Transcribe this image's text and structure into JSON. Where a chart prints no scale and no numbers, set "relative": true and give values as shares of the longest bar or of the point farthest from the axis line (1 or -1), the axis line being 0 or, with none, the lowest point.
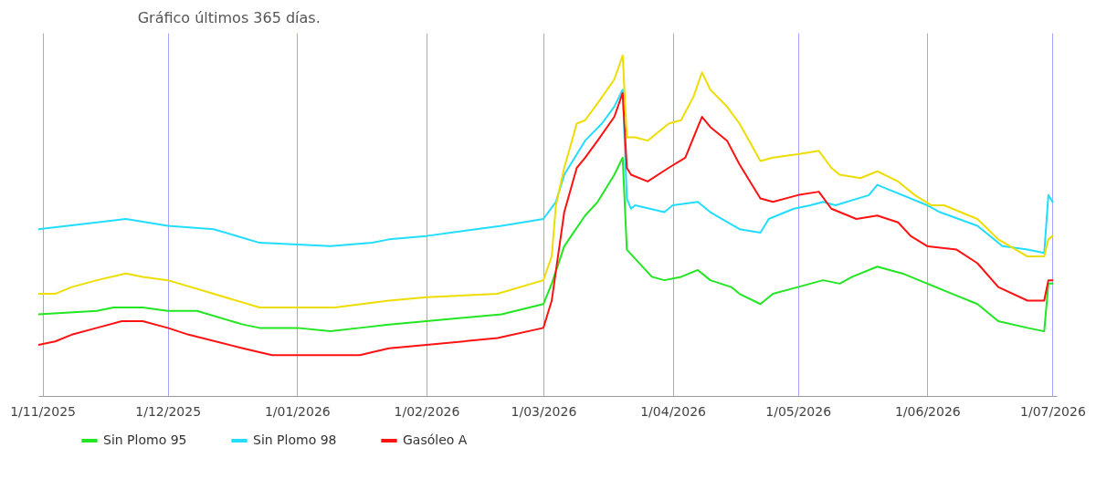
{
  "chart_data": {
    "type": "line",
    "title": "Gráfico últimos 365 días.",
    "relative": true,
    "grid": "x",
    "legend": "bottom",
    "xlim": [
      "2025-10-31",
      "2026-07-02"
    ],
    "xticks": [
      {
        "value": "2025-11-01",
        "label": "1/11/2025"
      },
      {
        "value": "2025-12-01",
        "label": "1/12/2025"
      },
      {
        "value": "2026-01-01",
        "label": "1/01/2026"
      },
      {
        "value": "2026-02-01",
        "label": "1/02/2026"
      },
      {
        "value": "2026-03-01",
        "label": "1/03/2026"
      },
      {
        "value": "2026-04-01",
        "label": "1/04/2026"
      },
      {
        "value": "2026-05-01",
        "label": "1/05/2026"
      },
      {
        "value": "2026-06-01",
        "label": "1/06/2026"
      },
      {
        "value": "2026-07-01",
        "label": "1/07/2026"
      }
    ],
    "series": [
      {
        "name": "Sin Plomo 95",
        "color": "#22e622",
        "x": [
          "2025-10-31",
          "2025-11-14",
          "2025-11-18",
          "2025-11-25",
          "2025-12-01",
          "2025-12-08",
          "2025-12-19",
          "2025-12-23",
          "2026-01-01",
          "2026-01-09",
          "2026-01-16",
          "2026-01-23",
          "2026-02-01",
          "2026-02-19",
          "2026-03-01",
          "2026-03-03",
          "2026-03-06",
          "2026-03-11",
          "2026-03-14",
          "2026-03-18",
          "2026-03-20",
          "2026-03-21",
          "2026-03-27",
          "2026-03-30",
          "2026-04-03",
          "2026-04-07",
          "2026-04-10",
          "2026-04-15",
          "2026-04-17",
          "2026-04-22",
          "2026-04-25",
          "2026-05-01",
          "2026-05-07",
          "2026-05-11",
          "2026-05-14",
          "2026-05-20",
          "2026-05-26",
          "2026-06-01",
          "2026-06-07",
          "2026-06-13",
          "2026-06-18",
          "2026-06-25",
          "2026-06-29",
          "2026-06-30",
          "2026-07-01"
        ],
        "values": [
          0.24,
          0.25,
          0.26,
          0.26,
          0.25,
          0.25,
          0.21,
          0.2,
          0.2,
          0.19,
          0.2,
          0.21,
          0.22,
          0.24,
          0.27,
          0.33,
          0.44,
          0.53,
          0.57,
          0.65,
          0.7,
          0.43,
          0.35,
          0.34,
          0.35,
          0.37,
          0.34,
          0.32,
          0.3,
          0.27,
          0.3,
          0.32,
          0.34,
          0.33,
          0.35,
          0.38,
          0.36,
          0.33,
          0.3,
          0.27,
          0.22,
          0.2,
          0.19,
          0.33,
          0.33
        ]
      },
      {
        "name": "Sin Plomo 98",
        "color": "#22ddff",
        "x": [
          "2025-10-31",
          "2025-11-14",
          "2025-11-21",
          "2025-12-01",
          "2025-12-12",
          "2025-12-23",
          "2026-01-09",
          "2026-01-19",
          "2026-01-23",
          "2026-02-01",
          "2026-02-19",
          "2026-03-01",
          "2026-03-04",
          "2026-03-06",
          "2026-03-11",
          "2026-03-15",
          "2026-03-18",
          "2026-03-20",
          "2026-03-21",
          "2026-03-22",
          "2026-03-23",
          "2026-03-30",
          "2026-04-01",
          "2026-04-07",
          "2026-04-10",
          "2026-04-17",
          "2026-04-22",
          "2026-04-24",
          "2026-04-30",
          "2026-05-04",
          "2026-05-07",
          "2026-05-10",
          "2026-05-18",
          "2026-05-20",
          "2026-06-01",
          "2026-06-04",
          "2026-06-13",
          "2026-06-19",
          "2026-06-25",
          "2026-06-29",
          "2026-06-30",
          "2026-07-01"
        ],
        "values": [
          0.49,
          0.51,
          0.52,
          0.5,
          0.49,
          0.45,
          0.44,
          0.45,
          0.46,
          0.47,
          0.5,
          0.52,
          0.57,
          0.65,
          0.75,
          0.8,
          0.85,
          0.9,
          0.58,
          0.55,
          0.56,
          0.54,
          0.56,
          0.57,
          0.54,
          0.49,
          0.48,
          0.52,
          0.55,
          0.56,
          0.57,
          0.56,
          0.59,
          0.62,
          0.56,
          0.54,
          0.5,
          0.44,
          0.43,
          0.42,
          0.59,
          0.57
        ]
      },
      {
        "name": "Gasóleo A",
        "color": "#ff1111",
        "x": [
          "2025-10-31",
          "2025-11-04",
          "2025-11-08",
          "2025-11-14",
          "2025-11-20",
          "2025-11-25",
          "2025-12-01",
          "2025-12-06",
          "2025-12-19",
          "2025-12-26",
          "2026-01-02",
          "2026-01-10",
          "2026-01-16",
          "2026-01-23",
          "2026-02-01",
          "2026-02-18",
          "2026-03-01",
          "2026-03-03",
          "2026-03-06",
          "2026-03-09",
          "2026-03-11",
          "2026-03-14",
          "2026-03-18",
          "2026-03-20",
          "2026-03-21",
          "2026-03-22",
          "2026-03-26",
          "2026-03-31",
          "2026-04-04",
          "2026-04-08",
          "2026-04-10",
          "2026-04-14",
          "2026-04-17",
          "2026-04-22",
          "2026-04-25",
          "2026-05-01",
          "2026-05-06",
          "2026-05-09",
          "2026-05-15",
          "2026-05-20",
          "2026-05-25",
          "2026-05-28",
          "2026-06-01",
          "2026-06-08",
          "2026-06-13",
          "2026-06-18",
          "2026-06-25",
          "2026-06-29",
          "2026-06-30",
          "2026-07-01"
        ],
        "values": [
          0.15,
          0.16,
          0.18,
          0.2,
          0.22,
          0.22,
          0.2,
          0.18,
          0.14,
          0.12,
          0.12,
          0.12,
          0.12,
          0.14,
          0.15,
          0.17,
          0.2,
          0.28,
          0.54,
          0.67,
          0.7,
          0.75,
          0.82,
          0.89,
          0.67,
          0.65,
          0.63,
          0.67,
          0.7,
          0.82,
          0.79,
          0.75,
          0.68,
          0.58,
          0.57,
          0.59,
          0.6,
          0.55,
          0.52,
          0.53,
          0.51,
          0.47,
          0.44,
          0.43,
          0.39,
          0.32,
          0.28,
          0.28,
          0.34,
          0.34
        ]
      },
      {
        "color": "#eedd00",
        "x": [
          "2025-10-31",
          "2025-11-04",
          "2025-11-08",
          "2025-11-14",
          "2025-11-21",
          "2025-11-25",
          "2025-12-01",
          "2025-12-12",
          "2025-12-23",
          "2026-01-02",
          "2026-01-10",
          "2026-01-23",
          "2026-02-01",
          "2026-02-18",
          "2026-03-01",
          "2026-03-03",
          "2026-03-04",
          "2026-03-06",
          "2026-03-09",
          "2026-03-11",
          "2026-03-14",
          "2026-03-18",
          "2026-03-20",
          "2026-03-21",
          "2026-03-23",
          "2026-03-26",
          "2026-03-31",
          "2026-04-03",
          "2026-04-06",
          "2026-04-08",
          "2026-04-10",
          "2026-04-14",
          "2026-04-17",
          "2026-04-22",
          "2026-04-25",
          "2026-05-01",
          "2026-05-06",
          "2026-05-09",
          "2026-05-11",
          "2026-05-16",
          "2026-05-20",
          "2026-05-25",
          "2026-05-29",
          "2026-06-02",
          "2026-06-05",
          "2026-06-13",
          "2026-06-18",
          "2026-06-25",
          "2026-06-29",
          "2026-06-30",
          "2026-07-01"
        ],
        "values": [
          0.3,
          0.3,
          0.32,
          0.34,
          0.36,
          0.35,
          0.34,
          0.3,
          0.26,
          0.26,
          0.26,
          0.28,
          0.29,
          0.3,
          0.34,
          0.41,
          0.56,
          0.67,
          0.8,
          0.81,
          0.86,
          0.93,
          1,
          0.76,
          0.76,
          0.75,
          0.8,
          0.81,
          0.88,
          0.95,
          0.9,
          0.85,
          0.8,
          0.69,
          0.7,
          0.71,
          0.72,
          0.67,
          0.65,
          0.64,
          0.66,
          0.63,
          0.59,
          0.56,
          0.56,
          0.52,
          0.46,
          0.41,
          0.41,
          0.46,
          0.47
        ]
      }
    ]
  }
}
